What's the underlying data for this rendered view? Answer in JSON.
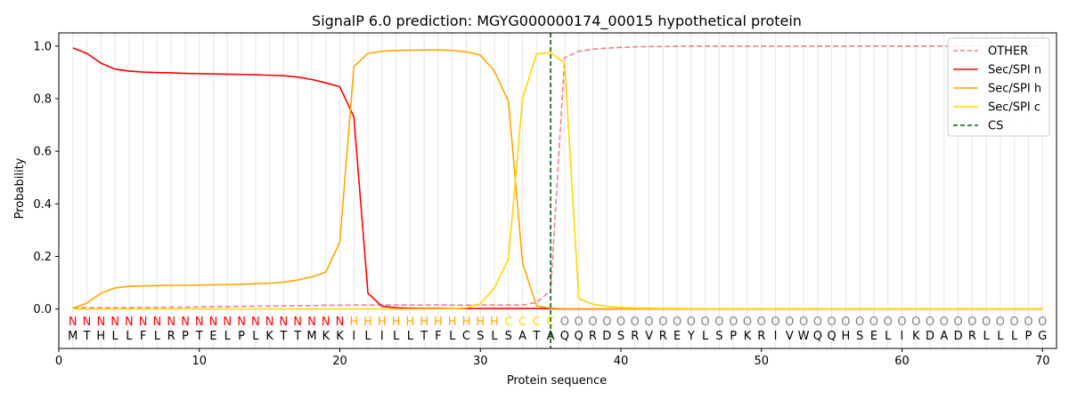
{
  "chart_data": {
    "type": "line",
    "title": "SignalP 6.0 prediction: MGYG000000174_00015 hypothetical protein",
    "xlabel": "Protein sequence",
    "ylabel": "Probability",
    "xlim": [
      0,
      71
    ],
    "ylim": [
      -0.15,
      1.05
    ],
    "x_ticks": [
      0,
      10,
      20,
      30,
      40,
      50,
      60,
      70
    ],
    "y_ticks": [
      0.0,
      0.2,
      0.4,
      0.6,
      0.8,
      1.0
    ],
    "grid": "vertical lines at each residue",
    "legend_position": "top-right",
    "sequence": [
      "M",
      "T",
      "H",
      "L",
      "L",
      "F",
      "L",
      "R",
      "P",
      "T",
      "E",
      "L",
      "P",
      "L",
      "K",
      "T",
      "T",
      "M",
      "K",
      "K",
      "I",
      "L",
      "I",
      "L",
      "L",
      "T",
      "F",
      "L",
      "C",
      "S",
      "L",
      "S",
      "A",
      "T",
      "A",
      "Q",
      "Q",
      "R",
      "D",
      "S",
      "R",
      "V",
      "R",
      "E",
      "Y",
      "L",
      "S",
      "P",
      "K",
      "R",
      "I",
      "V",
      "W",
      "Q",
      "Q",
      "H",
      "S",
      "E",
      "L",
      "I",
      "K",
      "D",
      "A",
      "D",
      "R",
      "L",
      "L",
      "L",
      "P",
      "G"
    ],
    "labels": [
      "N",
      "N",
      "N",
      "N",
      "N",
      "N",
      "N",
      "N",
      "N",
      "N",
      "N",
      "N",
      "N",
      "N",
      "N",
      "N",
      "N",
      "N",
      "N",
      "N",
      "H",
      "H",
      "H",
      "H",
      "H",
      "H",
      "H",
      "H",
      "H",
      "H",
      "H",
      "C",
      "C",
      "C",
      "C",
      "O",
      "O",
      "O",
      "O",
      "O",
      "O",
      "O",
      "O",
      "O",
      "O",
      "O",
      "O",
      "O",
      "O",
      "O",
      "O",
      "O",
      "O",
      "O",
      "O",
      "O",
      "O",
      "O",
      "O",
      "O",
      "O",
      "O",
      "O",
      "O",
      "O",
      "O",
      "O",
      "O",
      "O",
      "O"
    ],
    "label_colors": {
      "N": "#ff0000",
      "H": "#ffa500",
      "C": "#ffd700",
      "O": "#808080"
    },
    "cs_position": 35,
    "series": [
      {
        "name": "OTHER",
        "color": "#f08080",
        "style": "dashed",
        "values": [
          0.005,
          0.005,
          0.005,
          0.005,
          0.005,
          0.006,
          0.006,
          0.007,
          0.007,
          0.008,
          0.009,
          0.009,
          0.01,
          0.011,
          0.011,
          0.012,
          0.013,
          0.013,
          0.014,
          0.014,
          0.015,
          0.015,
          0.015,
          0.015,
          0.015,
          0.015,
          0.015,
          0.015,
          0.015,
          0.015,
          0.015,
          0.015,
          0.015,
          0.025,
          0.07,
          0.955,
          0.98,
          0.988,
          0.992,
          0.995,
          0.997,
          0.998,
          0.998,
          0.999,
          0.999,
          0.999,
          0.999,
          0.999,
          0.999,
          0.999,
          0.999,
          0.999,
          0.999,
          0.999,
          0.999,
          0.999,
          0.999,
          0.999,
          0.999,
          0.999,
          0.999,
          0.999,
          0.999,
          0.999,
          0.999,
          0.999,
          0.999,
          0.999,
          0.999,
          0.999
        ]
      },
      {
        "name": "Sec/SPI n",
        "color": "#ff0000",
        "style": "solid",
        "values": [
          0.993,
          0.972,
          0.935,
          0.912,
          0.905,
          0.901,
          0.899,
          0.898,
          0.896,
          0.895,
          0.894,
          0.893,
          0.892,
          0.891,
          0.889,
          0.887,
          0.882,
          0.873,
          0.86,
          0.845,
          0.73,
          0.06,
          0.01,
          0.005,
          0.003,
          0.002,
          0.002,
          0.002,
          0.002,
          0.002,
          0.002,
          0.002,
          0.002,
          0.002,
          0.001,
          0.0,
          0.0,
          0.0,
          0.0,
          0.0,
          0.0,
          0.0,
          0.0,
          0.0,
          0.0,
          0.0,
          0.0,
          0.0,
          0.0,
          0.0,
          0.0,
          0.0,
          0.0,
          0.0,
          0.0,
          0.0,
          0.0,
          0.0,
          0.0,
          0.0,
          0.0,
          0.0,
          0.0,
          0.0,
          0.0,
          0.0,
          0.0,
          0.0,
          0.0,
          0.0
        ]
      },
      {
        "name": "Sec/SPI h",
        "color": "#ffa500",
        "style": "solid",
        "values": [
          0.003,
          0.022,
          0.06,
          0.08,
          0.086,
          0.088,
          0.089,
          0.09,
          0.09,
          0.091,
          0.092,
          0.093,
          0.094,
          0.096,
          0.098,
          0.102,
          0.11,
          0.122,
          0.14,
          0.255,
          0.922,
          0.972,
          0.98,
          0.983,
          0.984,
          0.985,
          0.985,
          0.983,
          0.978,
          0.965,
          0.905,
          0.79,
          0.175,
          0.012,
          0.003,
          0.001,
          0.001,
          0.001,
          0.0,
          0.0,
          0.0,
          0.0,
          0.0,
          0.0,
          0.0,
          0.0,
          0.0,
          0.0,
          0.0,
          0.0,
          0.0,
          0.0,
          0.0,
          0.0,
          0.0,
          0.0,
          0.0,
          0.0,
          0.0,
          0.0,
          0.0,
          0.0,
          0.0,
          0.0,
          0.0,
          0.0,
          0.0,
          0.0,
          0.0,
          0.0
        ]
      },
      {
        "name": "Sec/SPI c",
        "color": "#ffd700",
        "style": "solid",
        "values": [
          0.0,
          0.0,
          0.0,
          0.0,
          0.0,
          0.0,
          0.0,
          0.0,
          0.0,
          0.0,
          0.0,
          0.0,
          0.0,
          0.0,
          0.0,
          0.0,
          0.0,
          0.0,
          0.0,
          0.0,
          0.0,
          0.0,
          0.0,
          0.0,
          0.0,
          0.0,
          0.0,
          0.001,
          0.005,
          0.02,
          0.08,
          0.19,
          0.8,
          0.97,
          0.975,
          0.935,
          0.04,
          0.018,
          0.01,
          0.006,
          0.004,
          0.003,
          0.002,
          0.002,
          0.001,
          0.001,
          0.001,
          0.001,
          0.001,
          0.001,
          0.001,
          0.001,
          0.001,
          0.001,
          0.001,
          0.001,
          0.001,
          0.001,
          0.001,
          0.001,
          0.001,
          0.001,
          0.001,
          0.001,
          0.001,
          0.001,
          0.001,
          0.001,
          0.001,
          0.001
        ]
      },
      {
        "name": "CS",
        "color": "#006400",
        "style": "dashed"
      }
    ]
  }
}
